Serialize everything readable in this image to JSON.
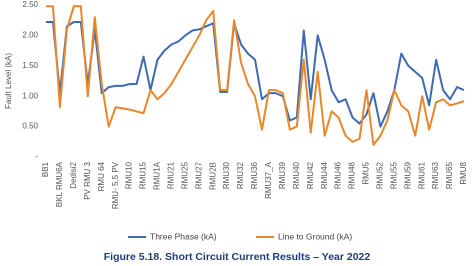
{
  "chart_data": {
    "type": "line",
    "caption": "Figure 5.18. Short Circuit Current Results – Year 2022",
    "y_label": "Fault Level (kA)",
    "categories": [
      "BB1",
      null,
      "BKL RMU6A",
      null,
      "Dedisi2",
      null,
      "PV RMU 3",
      null,
      "RMU 64",
      null,
      "RMU- 5.5 PV",
      null,
      "RMU10",
      null,
      "RMU15",
      null,
      "RMU1A",
      null,
      "RMU21",
      null,
      "RMU25",
      null,
      "RMU27",
      null,
      "RMU2B",
      null,
      "RMU30",
      null,
      "RMU32",
      null,
      "RMU36",
      null,
      "RMU37_A",
      null,
      "RMU39",
      null,
      "RMU40",
      null,
      "RMU42",
      null,
      "RMU44",
      null,
      "RMU46",
      null,
      "RMU48",
      null,
      "RMU5",
      null,
      "RMU52",
      null,
      "RMU55",
      null,
      "RMU59",
      null,
      "RMU61",
      null,
      "RMU63",
      null,
      "RMU65",
      null,
      "RMU8"
    ],
    "series": [
      {
        "name": "Three Phase (kA)",
        "color": "#3d6bb3",
        "values": [
          2.22,
          2.22,
          1.05,
          2.15,
          2.22,
          2.22,
          1.2,
          2.1,
          1.05,
          1.15,
          1.17,
          1.17,
          1.2,
          1.2,
          1.65,
          1.1,
          1.6,
          1.75,
          1.85,
          1.9,
          2.0,
          2.08,
          2.1,
          2.15,
          2.2,
          1.07,
          1.07,
          2.2,
          1.85,
          1.7,
          1.6,
          0.95,
          1.05,
          1.05,
          1.0,
          0.6,
          0.65,
          2.08,
          0.95,
          2.0,
          1.6,
          1.1,
          0.9,
          0.95,
          0.65,
          0.55,
          0.7,
          1.05,
          0.5,
          0.75,
          1.1,
          1.7,
          1.5,
          1.4,
          1.3,
          0.85,
          1.6,
          1.1,
          0.95,
          1.15,
          1.1
        ]
      },
      {
        "name": "Line to Ground (kA)",
        "color": "#e8872c",
        "values": [
          2.48,
          2.48,
          0.82,
          2.1,
          2.48,
          2.48,
          1.0,
          2.3,
          1.2,
          0.5,
          0.82,
          0.8,
          0.78,
          0.75,
          0.72,
          1.1,
          0.95,
          1.05,
          1.2,
          1.4,
          1.6,
          1.8,
          2.0,
          2.25,
          2.4,
          1.1,
          1.1,
          2.25,
          1.55,
          1.2,
          1.0,
          0.45,
          1.1,
          1.1,
          1.05,
          0.45,
          0.5,
          1.6,
          0.4,
          1.4,
          0.35,
          0.75,
          0.65,
          0.35,
          0.25,
          0.3,
          1.1,
          0.2,
          0.35,
          0.6,
          1.1,
          0.85,
          0.75,
          0.35,
          1.0,
          0.45,
          0.9,
          0.95,
          0.85,
          0.88,
          0.92
        ]
      }
    ],
    "ylim": [
      0,
      2.5
    ],
    "yticks": [
      {
        "value": 0,
        "label": "-"
      },
      {
        "value": 0.5,
        "label": "0.50"
      },
      {
        "value": 1,
        "label": "1.00"
      },
      {
        "value": 1.5,
        "label": "1.50"
      },
      {
        "value": 2,
        "label": "2.00"
      },
      {
        "value": 2.5,
        "label": "2.50"
      }
    ]
  }
}
